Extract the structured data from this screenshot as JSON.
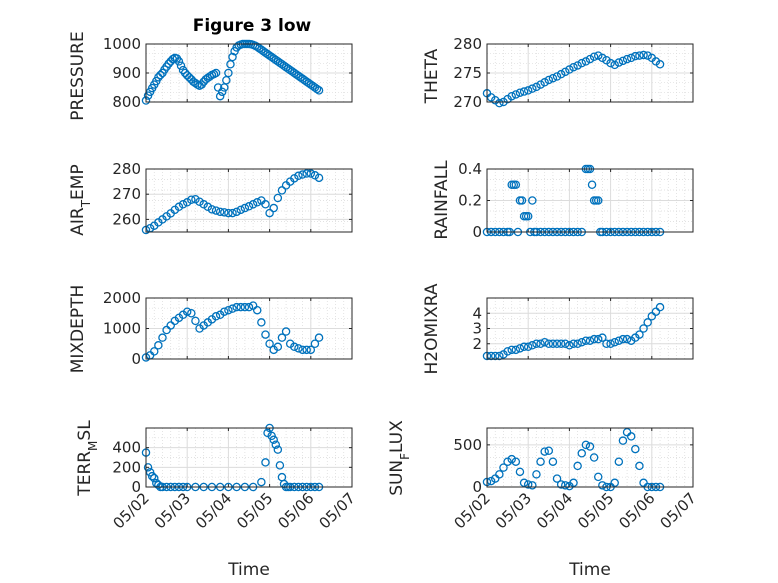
{
  "figure": {
    "title": "Figure 3 low"
  },
  "chart_data": [
    {
      "id": "pressure",
      "type": "scatter",
      "title": "Figure 3 low",
      "ylabel": "PRESSURE",
      "xlabel": "",
      "xlim": [
        0,
        5
      ],
      "ylim": [
        800,
        1000
      ],
      "yticks": [
        800,
        900,
        1000
      ],
      "xticklabels": [],
      "x": [
        0,
        0.05,
        0.1,
        0.15,
        0.2,
        0.25,
        0.3,
        0.35,
        0.4,
        0.45,
        0.5,
        0.55,
        0.6,
        0.65,
        0.7,
        0.75,
        0.8,
        0.85,
        0.9,
        0.95,
        1.0,
        1.05,
        1.1,
        1.15,
        1.2,
        1.25,
        1.3,
        1.35,
        1.4,
        1.45,
        1.5,
        1.55,
        1.6,
        1.65,
        1.7,
        1.75,
        1.8,
        1.85,
        1.9,
        1.95,
        2.0,
        2.05,
        2.1,
        2.15,
        2.2,
        2.25,
        2.3,
        2.35,
        2.4,
        2.45,
        2.5,
        2.55,
        2.6,
        2.65,
        2.7,
        2.75,
        2.8,
        2.85,
        2.9,
        2.95,
        3.0,
        3.05,
        3.1,
        3.15,
        3.2,
        3.25,
        3.3,
        3.35,
        3.4,
        3.45,
        3.5,
        3.55,
        3.6,
        3.65,
        3.7,
        3.75,
        3.8,
        3.85,
        3.9,
        3.95,
        4.0,
        4.05,
        4.1,
        4.15,
        4.2
      ],
      "y": [
        805,
        822,
        835,
        848,
        860,
        872,
        885,
        893,
        900,
        912,
        922,
        932,
        940,
        948,
        952,
        950,
        940,
        925,
        910,
        900,
        892,
        885,
        878,
        870,
        865,
        860,
        856,
        860,
        870,
        878,
        883,
        888,
        893,
        896,
        900,
        850,
        820,
        835,
        850,
        875,
        900,
        930,
        955,
        975,
        988,
        995,
        998,
        1000,
        1000,
        1000,
        1000,
        999,
        997,
        994,
        990,
        985,
        980,
        975,
        970,
        965,
        960,
        955,
        950,
        945,
        940,
        935,
        930,
        925,
        920,
        915,
        910,
        905,
        900,
        895,
        890,
        885,
        880,
        875,
        870,
        865,
        860,
        855,
        850,
        845,
        840
      ]
    },
    {
      "id": "theta",
      "type": "scatter",
      "ylabel": "THETA",
      "xlabel": "",
      "xlim": [
        0,
        5
      ],
      "ylim": [
        270,
        280
      ],
      "yticks": [
        270,
        275,
        280
      ],
      "xticklabels": [],
      "x": [
        0,
        0.1,
        0.2,
        0.3,
        0.4,
        0.5,
        0.6,
        0.7,
        0.8,
        0.9,
        1.0,
        1.1,
        1.2,
        1.3,
        1.4,
        1.5,
        1.6,
        1.7,
        1.8,
        1.9,
        2.0,
        2.1,
        2.2,
        2.3,
        2.4,
        2.5,
        2.6,
        2.7,
        2.8,
        2.9,
        3.0,
        3.1,
        3.2,
        3.3,
        3.4,
        3.5,
        3.6,
        3.7,
        3.8,
        3.9,
        4.0,
        4.1,
        4.2
      ],
      "y": [
        271.5,
        270.8,
        270.3,
        269.8,
        270.0,
        270.5,
        271.0,
        271.3,
        271.6,
        271.8,
        272.0,
        272.3,
        272.6,
        273.0,
        273.4,
        273.8,
        274.1,
        274.4,
        274.8,
        275.2,
        275.6,
        276.0,
        276.3,
        276.7,
        277.0,
        277.4,
        277.8,
        278.0,
        277.6,
        277.2,
        276.7,
        276.4,
        276.8,
        277.1,
        277.4,
        277.6,
        277.9,
        278.0,
        278.1,
        278.0,
        277.6,
        277.0,
        276.5
      ]
    },
    {
      "id": "airtemp",
      "type": "scatter",
      "ylabel": "AIR_TEMP",
      "xlabel": "",
      "xlim": [
        0,
        5
      ],
      "ylim": [
        255,
        280
      ],
      "yticks": [
        260,
        270,
        280
      ],
      "xticklabels": [],
      "x": [
        0,
        0.1,
        0.2,
        0.3,
        0.4,
        0.5,
        0.6,
        0.7,
        0.8,
        0.9,
        1.0,
        1.1,
        1.2,
        1.3,
        1.4,
        1.5,
        1.6,
        1.7,
        1.8,
        1.9,
        2.0,
        2.1,
        2.2,
        2.3,
        2.4,
        2.5,
        2.6,
        2.7,
        2.8,
        2.9,
        3.0,
        3.1,
        3.2,
        3.3,
        3.4,
        3.5,
        3.6,
        3.7,
        3.8,
        3.9,
        4.0,
        4.1,
        4.2
      ],
      "y": [
        255.8,
        256.5,
        257.5,
        258.8,
        260,
        261.2,
        262.4,
        263.8,
        265,
        266,
        266.8,
        267.8,
        268,
        267,
        266,
        265,
        264,
        263.5,
        263,
        262.8,
        262.5,
        262.5,
        263,
        263.8,
        264.5,
        265.2,
        266,
        266.8,
        267.5,
        266,
        262.5,
        264.5,
        268.5,
        271.5,
        273.5,
        275,
        276.3,
        277.3,
        277.8,
        278.2,
        278.2,
        277.5,
        276.5
      ]
    },
    {
      "id": "rainfall",
      "type": "scatter",
      "ylabel": "RAINFALL",
      "xlabel": "",
      "xlim": [
        0,
        5
      ],
      "ylim": [
        0,
        0.4
      ],
      "yticks": [
        0,
        0.2,
        0.4
      ],
      "xticklabels": [],
      "x": [
        0,
        0.1,
        0.2,
        0.3,
        0.4,
        0.5,
        0.55,
        0.6,
        0.65,
        0.7,
        0.75,
        0.8,
        0.85,
        0.9,
        0.95,
        1.0,
        1.05,
        1.1,
        1.15,
        1.2,
        1.3,
        1.4,
        1.5,
        1.6,
        1.7,
        1.8,
        1.9,
        2.0,
        2.1,
        2.2,
        2.3,
        2.4,
        2.45,
        2.5,
        2.55,
        2.6,
        2.65,
        2.7,
        2.75,
        2.8,
        2.9,
        3.0,
        3.1,
        3.2,
        3.3,
        3.4,
        3.5,
        3.6,
        3.7,
        3.8,
        3.9,
        4.0,
        4.1,
        4.2
      ],
      "y": [
        0,
        0,
        0,
        0,
        0,
        0,
        0,
        0.3,
        0.3,
        0.3,
        0,
        0.2,
        0.2,
        0.1,
        0.1,
        0.1,
        0,
        0.2,
        0,
        0,
        0,
        0,
        0,
        0,
        0,
        0,
        0,
        0,
        0,
        0,
        0,
        0.4,
        0.4,
        0.4,
        0.3,
        0.2,
        0.2,
        0.2,
        0,
        0,
        0,
        0,
        0,
        0,
        0,
        0,
        0,
        0,
        0,
        0,
        0,
        0,
        0,
        0
      ]
    },
    {
      "id": "mixdepth",
      "type": "scatter",
      "ylabel": "MIXDEPTH",
      "xlabel": "",
      "xlim": [
        0,
        5
      ],
      "ylim": [
        0,
        2000
      ],
      "yticks": [
        0,
        1000,
        2000
      ],
      "xticklabels": [],
      "x": [
        0,
        0.1,
        0.2,
        0.3,
        0.4,
        0.5,
        0.6,
        0.7,
        0.8,
        0.9,
        1.0,
        1.1,
        1.2,
        1.3,
        1.4,
        1.5,
        1.6,
        1.7,
        1.8,
        1.9,
        2.0,
        2.1,
        2.2,
        2.3,
        2.4,
        2.5,
        2.6,
        2.7,
        2.8,
        2.9,
        3.0,
        3.1,
        3.2,
        3.3,
        3.4,
        3.5,
        3.6,
        3.7,
        3.8,
        3.9,
        4.0,
        4.1,
        4.2
      ],
      "y": [
        50,
        120,
        250,
        450,
        700,
        950,
        1100,
        1250,
        1350,
        1450,
        1550,
        1500,
        1250,
        1000,
        1100,
        1200,
        1300,
        1400,
        1450,
        1550,
        1600,
        1650,
        1700,
        1700,
        1700,
        1700,
        1750,
        1600,
        1200,
        800,
        500,
        300,
        400,
        700,
        900,
        500,
        400,
        350,
        300,
        300,
        300,
        500,
        700
      ]
    },
    {
      "id": "h2omixra",
      "type": "scatter",
      "ylabel": "H2OMIXRA",
      "xlabel": "",
      "xlim": [
        0,
        5
      ],
      "ylim": [
        1,
        5
      ],
      "yticks": [
        2,
        3,
        4
      ],
      "xticklabels": [],
      "x": [
        0,
        0.1,
        0.2,
        0.3,
        0.4,
        0.5,
        0.6,
        0.7,
        0.8,
        0.9,
        1.0,
        1.1,
        1.2,
        1.3,
        1.4,
        1.5,
        1.6,
        1.7,
        1.8,
        1.9,
        2.0,
        2.1,
        2.2,
        2.3,
        2.4,
        2.5,
        2.6,
        2.7,
        2.8,
        2.9,
        3.0,
        3.1,
        3.2,
        3.3,
        3.4,
        3.5,
        3.6,
        3.7,
        3.8,
        3.9,
        4.0,
        4.1,
        4.2
      ],
      "y": [
        1.2,
        1.2,
        1.2,
        1.2,
        1.3,
        1.5,
        1.6,
        1.6,
        1.7,
        1.8,
        1.8,
        1.9,
        2.0,
        2.0,
        2.1,
        2.0,
        2.0,
        2.0,
        2.0,
        2.0,
        1.9,
        2.0,
        2.0,
        2.1,
        2.2,
        2.2,
        2.3,
        2.3,
        2.4,
        2.0,
        2.0,
        2.1,
        2.2,
        2.3,
        2.3,
        2.2,
        2.4,
        2.6,
        3.0,
        3.4,
        3.8,
        4.1,
        4.4
      ]
    },
    {
      "id": "terrmsl",
      "type": "scatter",
      "ylabel": "TERR_MSL",
      "xlabel": "Time",
      "xlim": [
        0,
        5
      ],
      "ylim": [
        0,
        600
      ],
      "yticks": [
        0,
        200,
        400
      ],
      "xticklabels": [
        "05/02",
        "05/03",
        "05/04",
        "05/05",
        "05/06",
        "05/07"
      ],
      "x": [
        0,
        0.05,
        0.1,
        0.15,
        0.2,
        0.25,
        0.3,
        0.35,
        0.4,
        0.5,
        0.6,
        0.7,
        0.8,
        0.9,
        1.0,
        1.2,
        1.4,
        1.6,
        1.8,
        2.0,
        2.2,
        2.4,
        2.6,
        2.8,
        2.9,
        2.95,
        3.0,
        3.05,
        3.1,
        3.15,
        3.2,
        3.25,
        3.3,
        3.35,
        3.4,
        3.45,
        3.5,
        3.6,
        3.7,
        3.8,
        3.9,
        4.0,
        4.1,
        4.2
      ],
      "y": [
        350,
        200,
        150,
        110,
        90,
        40,
        20,
        0,
        0,
        0,
        0,
        0,
        0,
        0,
        0,
        0,
        0,
        0,
        0,
        0,
        0,
        0,
        0,
        50,
        250,
        550,
        600,
        520,
        480,
        430,
        380,
        220,
        100,
        30,
        0,
        0,
        0,
        0,
        0,
        0,
        0,
        0,
        0,
        0
      ]
    },
    {
      "id": "sunflux",
      "type": "scatter",
      "ylabel": "SUN_FLUX",
      "xlabel": "Time",
      "xlim": [
        0,
        5
      ],
      "ylim": [
        0,
        700
      ],
      "yticks": [
        0,
        500
      ],
      "xticklabels": [
        "05/02",
        "05/03",
        "05/04",
        "05/05",
        "05/06",
        "05/07"
      ],
      "x": [
        0,
        0.1,
        0.2,
        0.3,
        0.4,
        0.5,
        0.6,
        0.7,
        0.8,
        0.9,
        1.0,
        1.1,
        1.2,
        1.3,
        1.4,
        1.5,
        1.6,
        1.7,
        1.8,
        1.9,
        2.0,
        2.1,
        2.2,
        2.3,
        2.4,
        2.5,
        2.6,
        2.7,
        2.8,
        2.9,
        3.0,
        3.1,
        3.2,
        3.3,
        3.4,
        3.5,
        3.6,
        3.7,
        3.8,
        3.9,
        4.0,
        4.1,
        4.2
      ],
      "y": [
        60,
        70,
        100,
        150,
        230,
        300,
        330,
        300,
        180,
        50,
        30,
        20,
        150,
        300,
        420,
        430,
        300,
        100,
        30,
        20,
        10,
        50,
        250,
        400,
        500,
        480,
        350,
        120,
        20,
        0,
        0,
        50,
        300,
        550,
        650,
        600,
        450,
        250,
        50,
        0,
        0,
        0,
        0
      ]
    }
  ]
}
